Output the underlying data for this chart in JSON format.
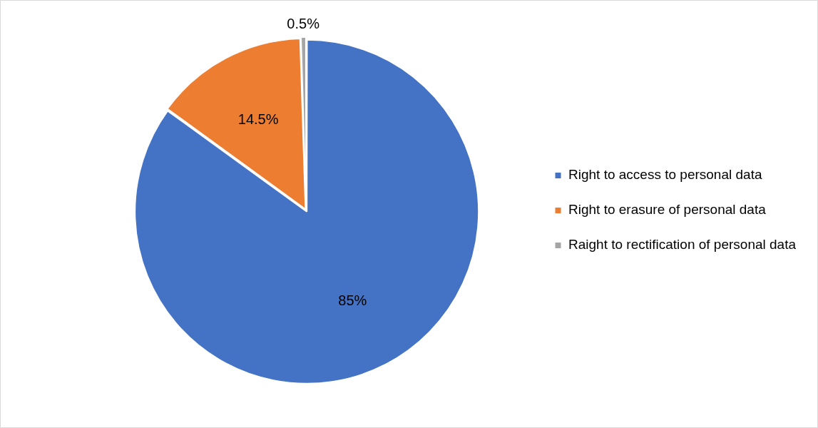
{
  "chart_data": {
    "type": "pie",
    "categories": [
      "Right to access to personal data",
      "Right to erasure of personal data",
      "Raight to rectification of personal data"
    ],
    "values": [
      85,
      14.5,
      0.5
    ],
    "colors": [
      "#4472c4",
      "#ed7d31",
      "#a5a5a5"
    ],
    "value_labels": [
      "85%",
      "14.5%",
      "0.5%"
    ],
    "legend": "right"
  }
}
